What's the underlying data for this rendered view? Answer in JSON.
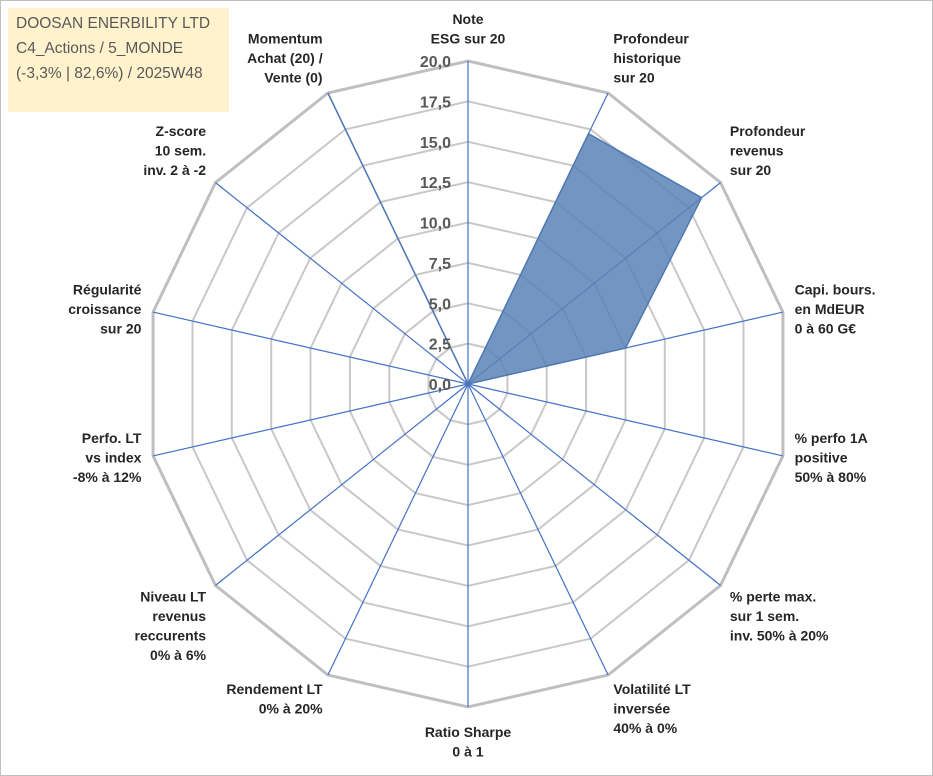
{
  "info": {
    "line1": "DOOSAN ENERBILITY LTD",
    "line2": "C4_Actions / 5_MONDE",
    "line3": "(-3,3% | 82,6%) / 2025W48"
  },
  "colors": {
    "series_fill": "#5b83b6",
    "series_stroke": "#4f79b2",
    "axis_line": "#4472c4",
    "grid": "#c8c8c8",
    "outer_ring": "#bfbfbf"
  },
  "chart_data": {
    "type": "radar",
    "rmin": 0,
    "rmax": 20,
    "tick_labels": [
      "0,0",
      "2,5",
      "5,0",
      "7,5",
      "10,0",
      "12,5",
      "15,0",
      "17,5",
      "20,0"
    ],
    "axes": [
      [
        "Note",
        "ESG sur 20"
      ],
      [
        "Profondeur",
        "historique",
        "sur 20"
      ],
      [
        "Profondeur",
        "revenus",
        "sur 20"
      ],
      [
        "Capi. bours.",
        "en MdEUR",
        "0 à 60 G€"
      ],
      [
        "% perfo 1A",
        "positive",
        "50% à 80%"
      ],
      [
        "% perte max.",
        "sur 1 sem.",
        "inv. 50% à 20%"
      ],
      [
        "Volatilité LT",
        "inversée",
        "40% à 0%"
      ],
      [
        "Ratio Sharpe",
        "0 à 1"
      ],
      [
        "Rendement LT",
        "0% à 20%"
      ],
      [
        "Niveau LT",
        "revenus",
        "reccurents",
        "0% à 6%"
      ],
      [
        "Perfo. LT",
        "vs index",
        "-8% à 12%"
      ],
      [
        "Régularité",
        "croissance",
        "sur 20"
      ],
      [
        "Z-score",
        "10 sem.",
        "inv. 2 à -2"
      ],
      [
        "Momentum",
        "Achat (20) /",
        "Vente (0)"
      ]
    ],
    "series": [
      {
        "values": [
          0,
          17.2,
          18.5,
          10.0,
          0,
          0,
          0,
          0,
          0,
          0,
          0,
          0,
          0,
          20.0
        ]
      }
    ],
    "grid": true
  }
}
